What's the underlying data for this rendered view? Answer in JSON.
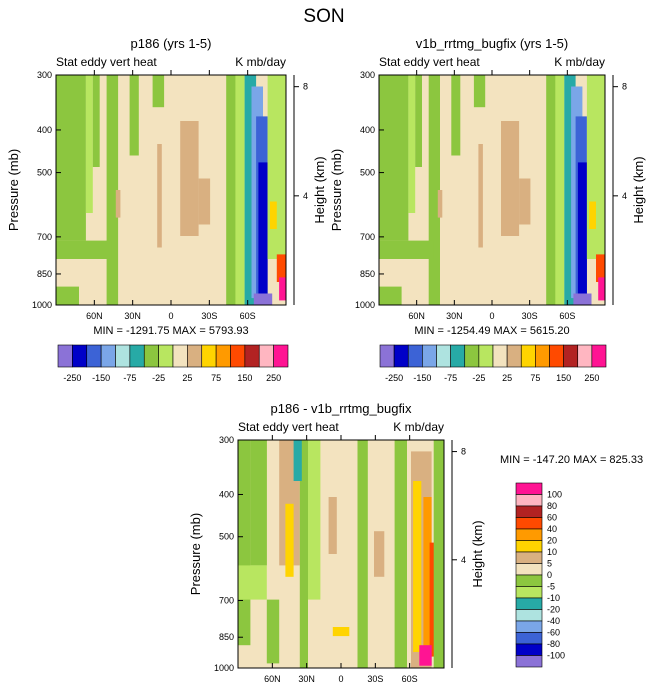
{
  "page_title": "SON",
  "colors": {
    "bg": "#f3e3bf",
    "tan": "#d9b081",
    "ltgreen": "#b8e660",
    "green": "#8cc63f",
    "pale": "#aee3e0",
    "cyan": "#27aaa6",
    "ltblue": "#7aa6e8",
    "blue": "#3c63d6",
    "navy": "#0000c8",
    "purple": "#8b72d7",
    "yellow": "#ffd400",
    "orange": "#ff9a00",
    "red": "#ff4a00",
    "dkred": "#b22222",
    "pink": "#ffb6c1",
    "magenta": "#ff1493"
  },
  "chart_data": [
    {
      "id": "p186",
      "type": "heatmap",
      "title": "p186 (yrs 1-5)",
      "subtitle_left": "Stat eddy vert heat",
      "subtitle_right": "K mb/day",
      "xlabel": "",
      "ylabel": "Pressure (mb)",
      "y2label": "Height (km)",
      "x_range": [
        90,
        -90
      ],
      "x_ticks": [
        "60N",
        "30N",
        "0",
        "30S",
        "60S"
      ],
      "x_tick_values": [
        60,
        30,
        0,
        -30,
        -60
      ],
      "y_ticks": [
        "300",
        "400",
        "500",
        "700",
        "850",
        "1000"
      ],
      "y_tick_values": [
        300,
        400,
        500,
        700,
        850,
        1000
      ],
      "ylim": [
        1000,
        300
      ],
      "y2_ticks": [
        "8",
        "4"
      ],
      "y2_tick_values": [
        8,
        4
      ],
      "stats": "MIN = -1291.75   MAX = 5793.93",
      "levels": [
        -250,
        -200,
        -150,
        -100,
        -75,
        -50,
        -25,
        -10,
        10,
        25,
        50,
        75,
        100,
        150,
        200,
        250
      ],
      "colorbar_labels": [
        "-250",
        "-150",
        "-75",
        "-25",
        "25",
        "75",
        "150",
        "250"
      ]
    },
    {
      "id": "v1b",
      "type": "heatmap",
      "title": "v1b_rrtmg_bugfix (yrs 1-5)",
      "subtitle_left": "Stat eddy vert heat",
      "subtitle_right": "K mb/day",
      "xlabel": "",
      "ylabel": "Pressure (mb)",
      "y2label": "Height (km)",
      "x_range": [
        90,
        -90
      ],
      "x_ticks": [
        "60N",
        "30N",
        "0",
        "30S",
        "60S"
      ],
      "x_tick_values": [
        60,
        30,
        0,
        -30,
        -60
      ],
      "y_ticks": [
        "300",
        "400",
        "500",
        "700",
        "850",
        "1000"
      ],
      "y_tick_values": [
        300,
        400,
        500,
        700,
        850,
        1000
      ],
      "ylim": [
        1000,
        300
      ],
      "y2_ticks": [
        "8",
        "4"
      ],
      "y2_tick_values": [
        8,
        4
      ],
      "stats": "MIN = -1254.49   MAX = 5615.20",
      "levels": [
        -250,
        -200,
        -150,
        -100,
        -75,
        -50,
        -25,
        -10,
        10,
        25,
        50,
        75,
        100,
        150,
        200,
        250
      ],
      "colorbar_labels": [
        "-250",
        "-150",
        "-75",
        "-25",
        "25",
        "75",
        "150",
        "250"
      ]
    },
    {
      "id": "diff",
      "type": "heatmap",
      "title": "p186 - v1b_rrtmg_bugfix",
      "subtitle_left": "Stat eddy vert heat",
      "subtitle_right": "K mb/day",
      "xlabel": "",
      "ylabel": "Pressure (mb)",
      "y2label": "Height (km)",
      "x_range": [
        90,
        -90
      ],
      "x_ticks": [
        "60N",
        "30N",
        "0",
        "30S",
        "60S"
      ],
      "x_tick_values": [
        60,
        30,
        0,
        -30,
        -60
      ],
      "y_ticks": [
        "300",
        "400",
        "500",
        "700",
        "850",
        "1000"
      ],
      "y_tick_values": [
        300,
        400,
        500,
        700,
        850,
        1000
      ],
      "ylim": [
        1000,
        300
      ],
      "y2_ticks": [
        "8",
        "4"
      ],
      "y2_tick_values": [
        8,
        4
      ],
      "stats": "MIN = -147.20   MAX = 825.33",
      "levels": [
        -100,
        -80,
        -60,
        -40,
        -20,
        -10,
        -5,
        0,
        5,
        10,
        20,
        40,
        60,
        80,
        100
      ],
      "colorbar_labels": [
        "100",
        "80",
        "60",
        "40",
        "20",
        "10",
        "5",
        "0",
        "-5",
        "-10",
        "-20",
        "-40",
        "-60",
        "-80",
        "-100"
      ]
    }
  ]
}
